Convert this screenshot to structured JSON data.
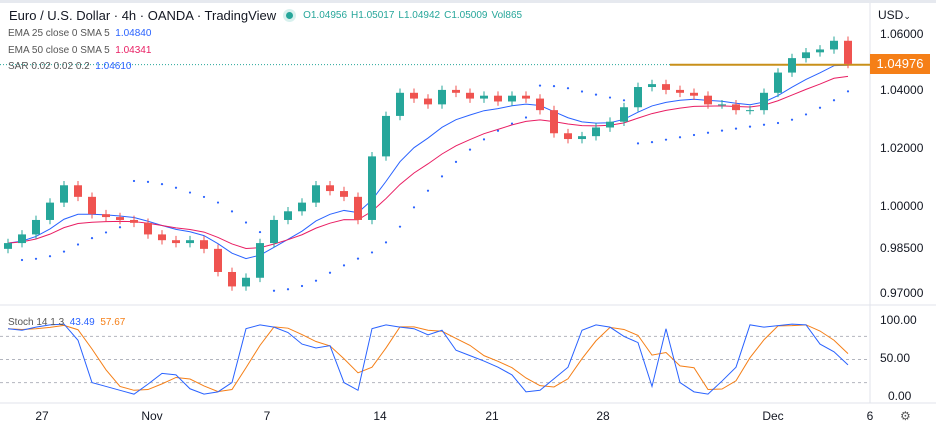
{
  "header": {
    "title": "Euro / U.S. Dollar · 4h · OANDA · TradingView",
    "ohlc": {
      "open": "O1.04956",
      "high": "H1.05017",
      "low": "L1.04942",
      "close": "C1.05009",
      "volume": "Vol865"
    },
    "indicators": [
      {
        "label": "EMA 25 close 0 SMA 5",
        "value": "1.04840",
        "color": "#2962ff"
      },
      {
        "label": "EMA 50 close 0 SMA 5",
        "value": "1.04341",
        "color": "#e91e63"
      },
      {
        "label": "SAR 0.02 0.02 0.2",
        "value": "1.04610",
        "color": "#2962ff"
      }
    ],
    "stoch": {
      "label": "Stoch 14 1 3",
      "k": "43.49",
      "d": "57.67",
      "k_color": "#2962ff",
      "d_color": "#f57f17"
    }
  },
  "price_axis": {
    "currency": "USD",
    "ticks": [
      "1.06000",
      "1.04000",
      "1.02000",
      "1.00000",
      "0.98500",
      "0.97000"
    ],
    "last_price": "1.04976",
    "last_price_color": "#f57f17"
  },
  "stoch_axis": {
    "ticks": [
      "100.00",
      "50.00",
      "0.00"
    ]
  },
  "time_axis": {
    "ticks": [
      "27",
      "Nov",
      "7",
      "14",
      "21",
      "28",
      "Dec",
      "6"
    ]
  },
  "chart_data": {
    "type": "candlestick",
    "up_color": "#26a69a",
    "down_color": "#ef5350",
    "ylim": [
      0.965,
      1.063
    ],
    "close": [
      0.988,
      0.991,
      0.996,
      1.002,
      1.008,
      1.004,
      0.998,
      0.997,
      0.996,
      0.995,
      0.991,
      0.989,
      0.988,
      0.989,
      0.986,
      0.978,
      0.973,
      0.976,
      0.988,
      0.996,
      0.999,
      1.002,
      1.008,
      1.006,
      1.004,
      0.996,
      1.018,
      1.032,
      1.04,
      1.038,
      1.036,
      1.041,
      1.04,
      1.038,
      1.039,
      1.037,
      1.039,
      1.038,
      1.034,
      1.026,
      1.024,
      1.025,
      1.028,
      1.03,
      1.035,
      1.042,
      1.043,
      1.041,
      1.04,
      1.039,
      1.036,
      1.036,
      1.034,
      1.034,
      1.04,
      1.047,
      1.052,
      1.054,
      1.055,
      1.058,
      1.05
    ],
    "resistance_level": 1.0497,
    "stoch_k": [
      90,
      88,
      92,
      95,
      96,
      75,
      20,
      15,
      10,
      5,
      18,
      32,
      30,
      12,
      5,
      8,
      20,
      90,
      95,
      92,
      85,
      70,
      65,
      68,
      20,
      10,
      90,
      95,
      92,
      90,
      82,
      88,
      62,
      55,
      48,
      40,
      30,
      8,
      10,
      25,
      40,
      88,
      95,
      92,
      80,
      72,
      15,
      90,
      20,
      8,
      5,
      22,
      40,
      95,
      92,
      94,
      96,
      95,
      70,
      60,
      43
    ],
    "stoch_levels": [
      80,
      50,
      20
    ]
  }
}
